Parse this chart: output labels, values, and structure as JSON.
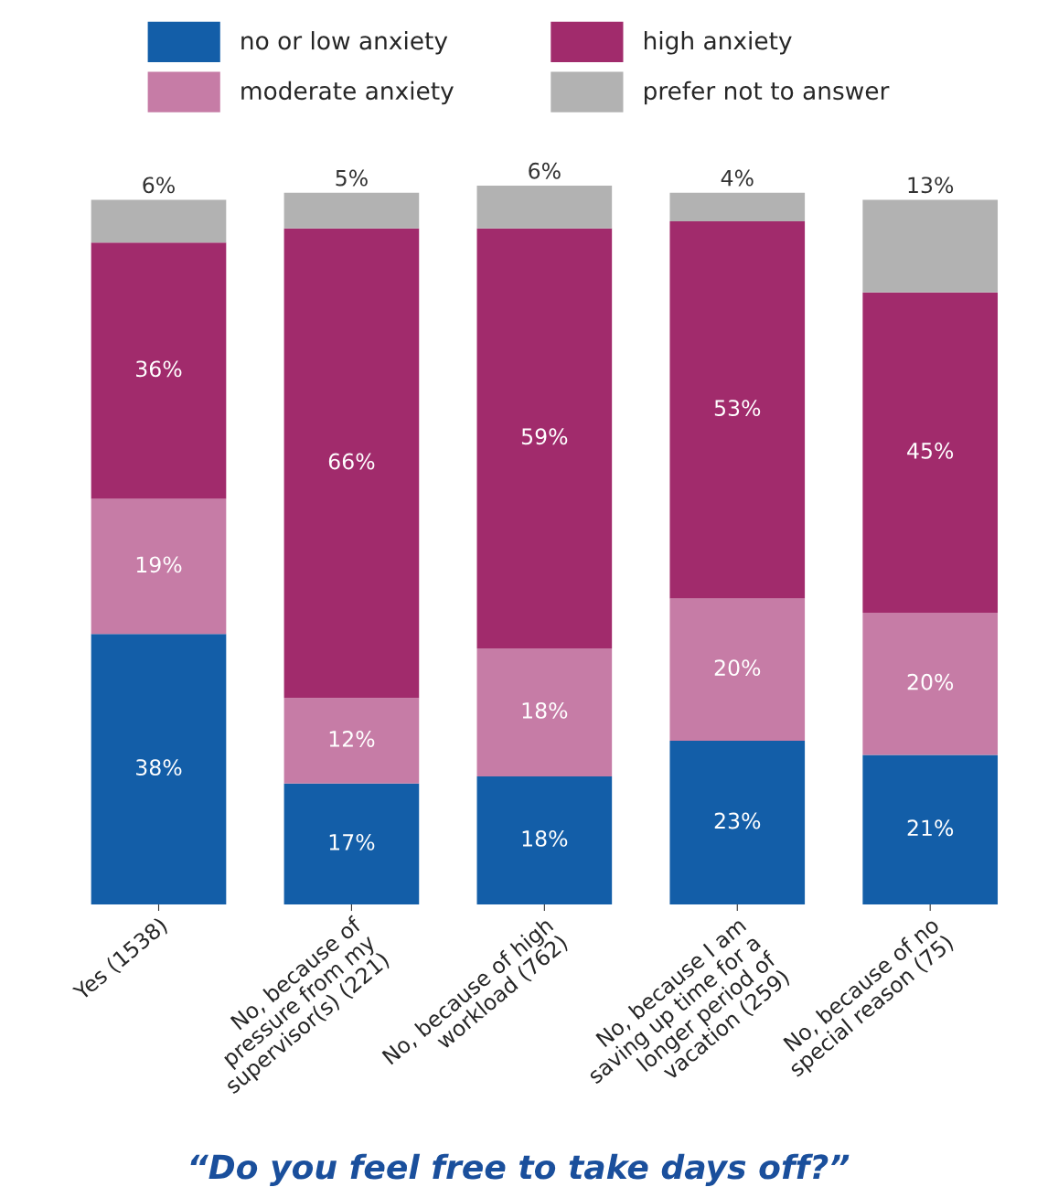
{
  "chart_data": {
    "type": "bar",
    "stacked": true,
    "title": "“Do you feel free to take days off?”",
    "categories": [
      "Yes (1538)",
      "No, because of\npressure from my\nsupervisor(s) (221)",
      "No, because of high\nworkload (762)",
      "No, because I am\nsaving up time for a\nlonger period of\nvacation (259)",
      "No, because of no\nspecial reason (75)"
    ],
    "series": [
      {
        "name": "no or low anxiety",
        "color": "#135ea8",
        "values": [
          38,
          17,
          18,
          23,
          21
        ],
        "value_labels": [
          "38%",
          "17%",
          "18%",
          "23%",
          "21%"
        ]
      },
      {
        "name": "moderate anxiety",
        "color": "#c67ca6",
        "values": [
          19,
          12,
          18,
          20,
          20
        ],
        "value_labels": [
          "19%",
          "12%",
          "18%",
          "20%",
          "20%"
        ]
      },
      {
        "name": "high anxiety",
        "color": "#a12b6c",
        "values": [
          36,
          66,
          59,
          53,
          45
        ],
        "value_labels": [
          "36%",
          "66%",
          "59%",
          "53%",
          "45%"
        ]
      },
      {
        "name": "prefer not to answer",
        "color": "#b2b2b2",
        "values": [
          6,
          5,
          6,
          4,
          13
        ],
        "value_labels": [
          "6%",
          "5%",
          "6%",
          "4%",
          "13%"
        ]
      }
    ],
    "legend": "top",
    "grid": false
  }
}
